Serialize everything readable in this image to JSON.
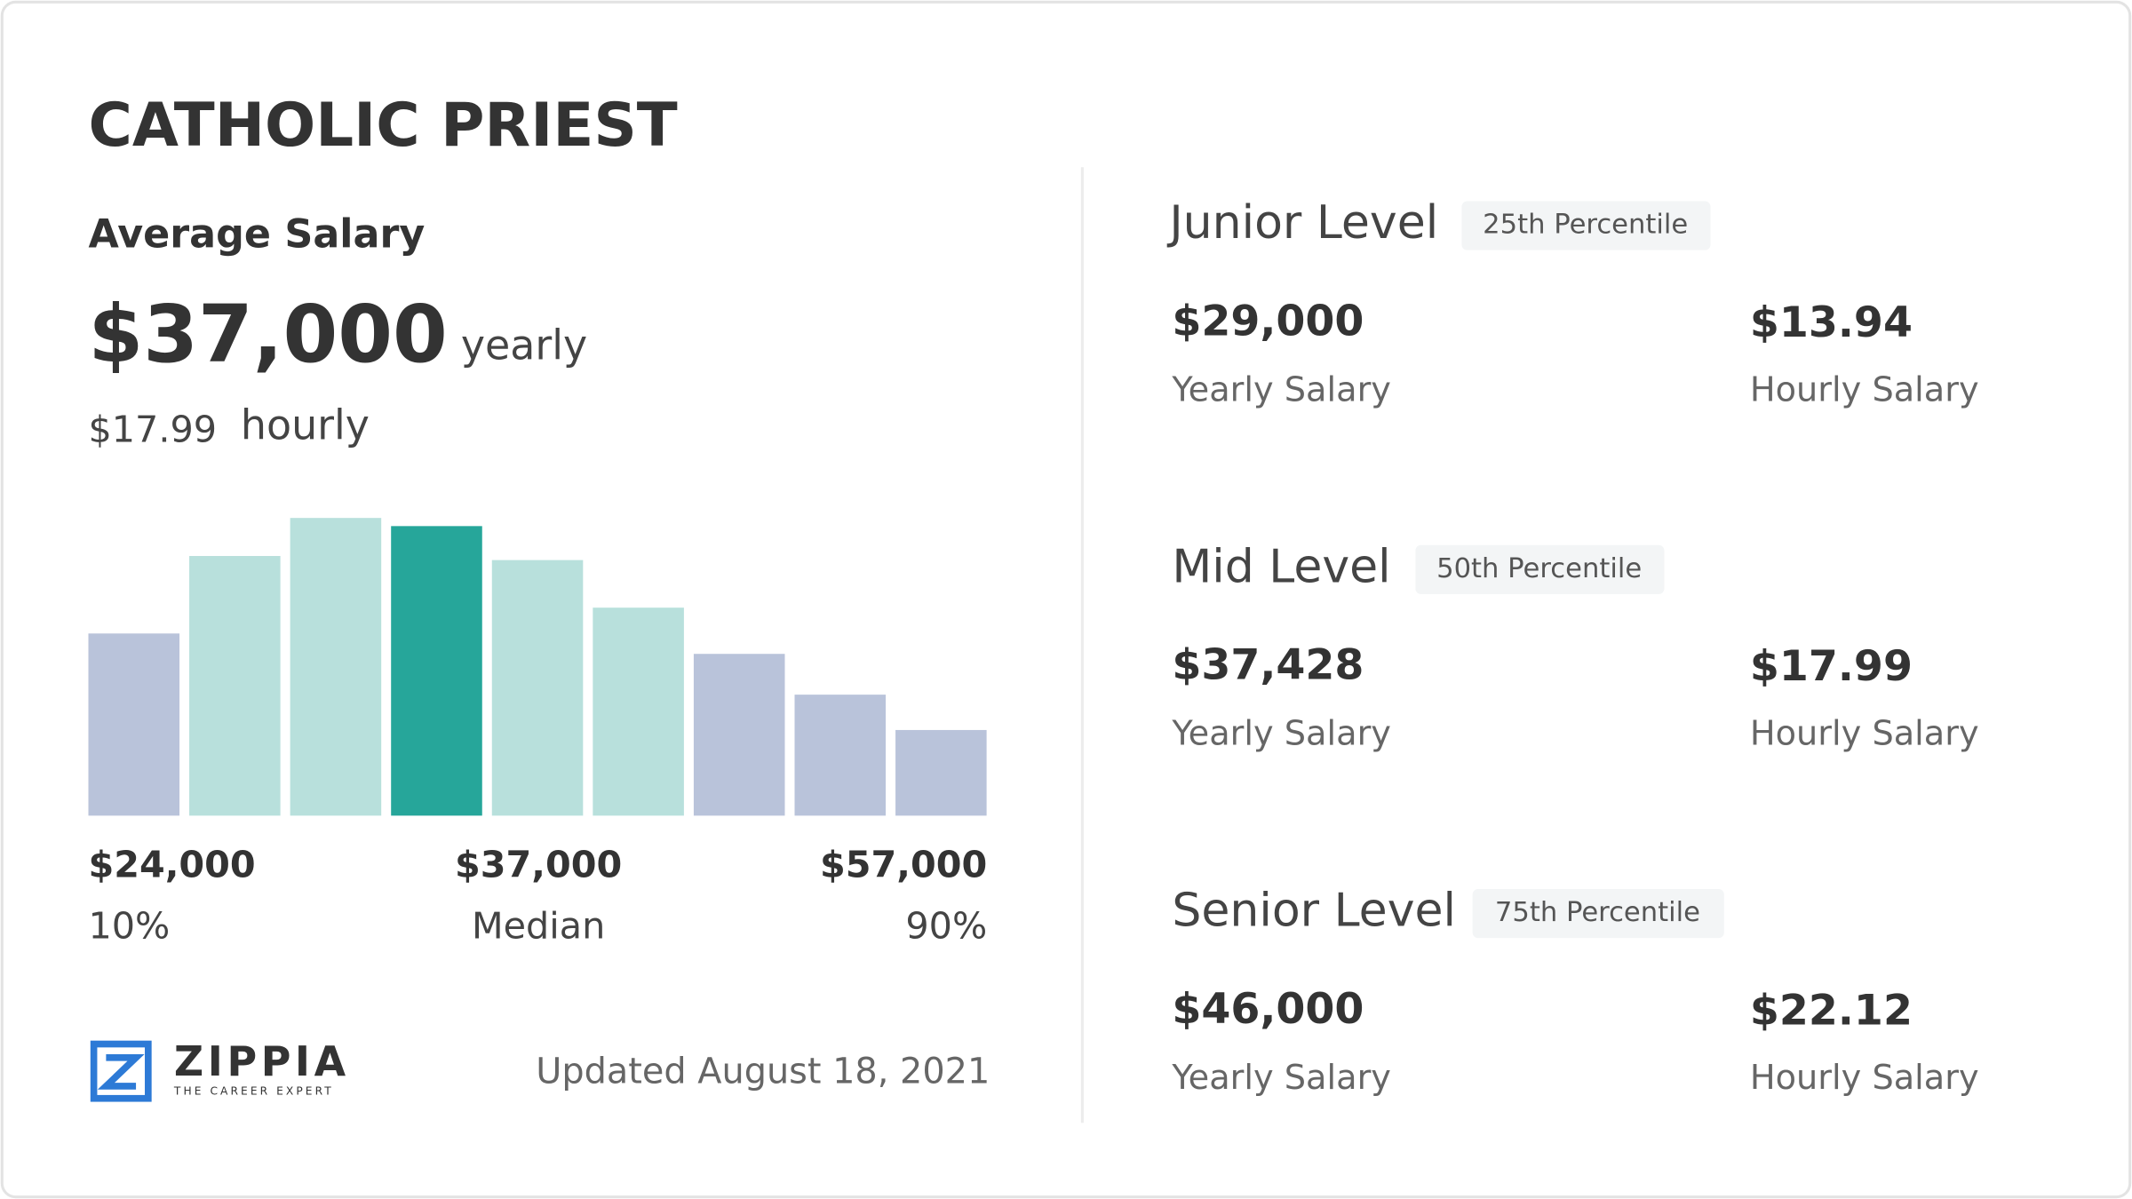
{
  "title": "CATHOLIC PRIEST",
  "average": {
    "label": "Average Salary",
    "yearly": "$37,000",
    "yearly_unit": "yearly",
    "hourly": "$17.99",
    "hourly_unit": "hourly"
  },
  "chart_data": {
    "type": "bar",
    "values": [
      134,
      191,
      219,
      213,
      188,
      153,
      119,
      89,
      63
    ],
    "colors": [
      "#b9c3da",
      "#b8e0dc",
      "#b8e0dc",
      "#26a69a",
      "#b8e0dc",
      "#b8e0dc",
      "#b9c3da",
      "#b9c3da",
      "#b9c3da"
    ],
    "ylim": [
      0,
      220
    ]
  },
  "distribution": {
    "low": {
      "value": "$24,000",
      "label": "10%"
    },
    "median": {
      "value": "$37,000",
      "label": "Median"
    },
    "high": {
      "value": "$57,000",
      "label": "90%"
    }
  },
  "logo": {
    "name": "ZIPPIA",
    "tagline": "THE CAREER EXPERT"
  },
  "updated": "Updated August 18, 2021",
  "levels": [
    {
      "name": "Junior Level",
      "percentile": "25th Percentile",
      "yearly": "$29,000",
      "yearly_label": "Yearly Salary",
      "hourly": "$13.94",
      "hourly_label": "Hourly Salary"
    },
    {
      "name": "Mid Level",
      "percentile": "50th Percentile",
      "yearly": "$37,428",
      "yearly_label": "Yearly Salary",
      "hourly": "$17.99",
      "hourly_label": "Hourly Salary"
    },
    {
      "name": "Senior Level",
      "percentile": "75th Percentile",
      "yearly": "$46,000",
      "yearly_label": "Yearly Salary",
      "hourly": "$22.12",
      "hourly_label": "Hourly Salary"
    }
  ]
}
